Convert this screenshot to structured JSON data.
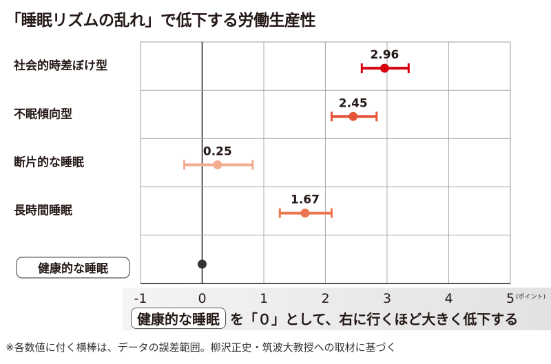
{
  "chart_data": {
    "type": "scatter",
    "title": "「睡眠リズムの乱れ」で低下する労働生産性",
    "xlabel": "",
    "unit_label": "(ポイント)",
    "xlim": [
      -1,
      5
    ],
    "xticks": [
      "-1",
      "0",
      "1",
      "2",
      "3",
      "4",
      "5"
    ],
    "grid": true,
    "categories": [
      "社会的時差ぼけ型",
      "不眠傾向型",
      "断片的な睡眠",
      "長時間睡眠",
      "健康的な睡眠"
    ],
    "points": [
      {
        "label": "社会的時差ぼけ型",
        "value": 2.96,
        "value_label": "2.96",
        "err_low": 2.59,
        "err_high": 3.35,
        "color": "#d7000f"
      },
      {
        "label": "不眠傾向型",
        "value": 2.45,
        "value_label": "2.45",
        "err_low": 2.1,
        "err_high": 2.83,
        "color": "#e5553a"
      },
      {
        "label": "断片的な睡眠",
        "value": 0.25,
        "value_label": "0.25",
        "err_low": -0.29,
        "err_high": 0.82,
        "color": "#f2ad90"
      },
      {
        "label": "長時間睡眠",
        "value": 1.67,
        "value_label": "1.67",
        "err_low": 1.26,
        "err_high": 2.1,
        "color": "#ec7650"
      },
      {
        "label": "健康的な睡眠",
        "value": 0,
        "value_label": "",
        "err_low": null,
        "err_high": null,
        "color": "#333333"
      }
    ],
    "reference_note": {
      "pill": "健康的な睡眠",
      "text": "を「０」として、右に行くほど大きく低下する"
    },
    "footnote": "※各数値に付く横棒は、データの誤差範囲。柳沢正史・筑波大教授への取材に基づく"
  }
}
